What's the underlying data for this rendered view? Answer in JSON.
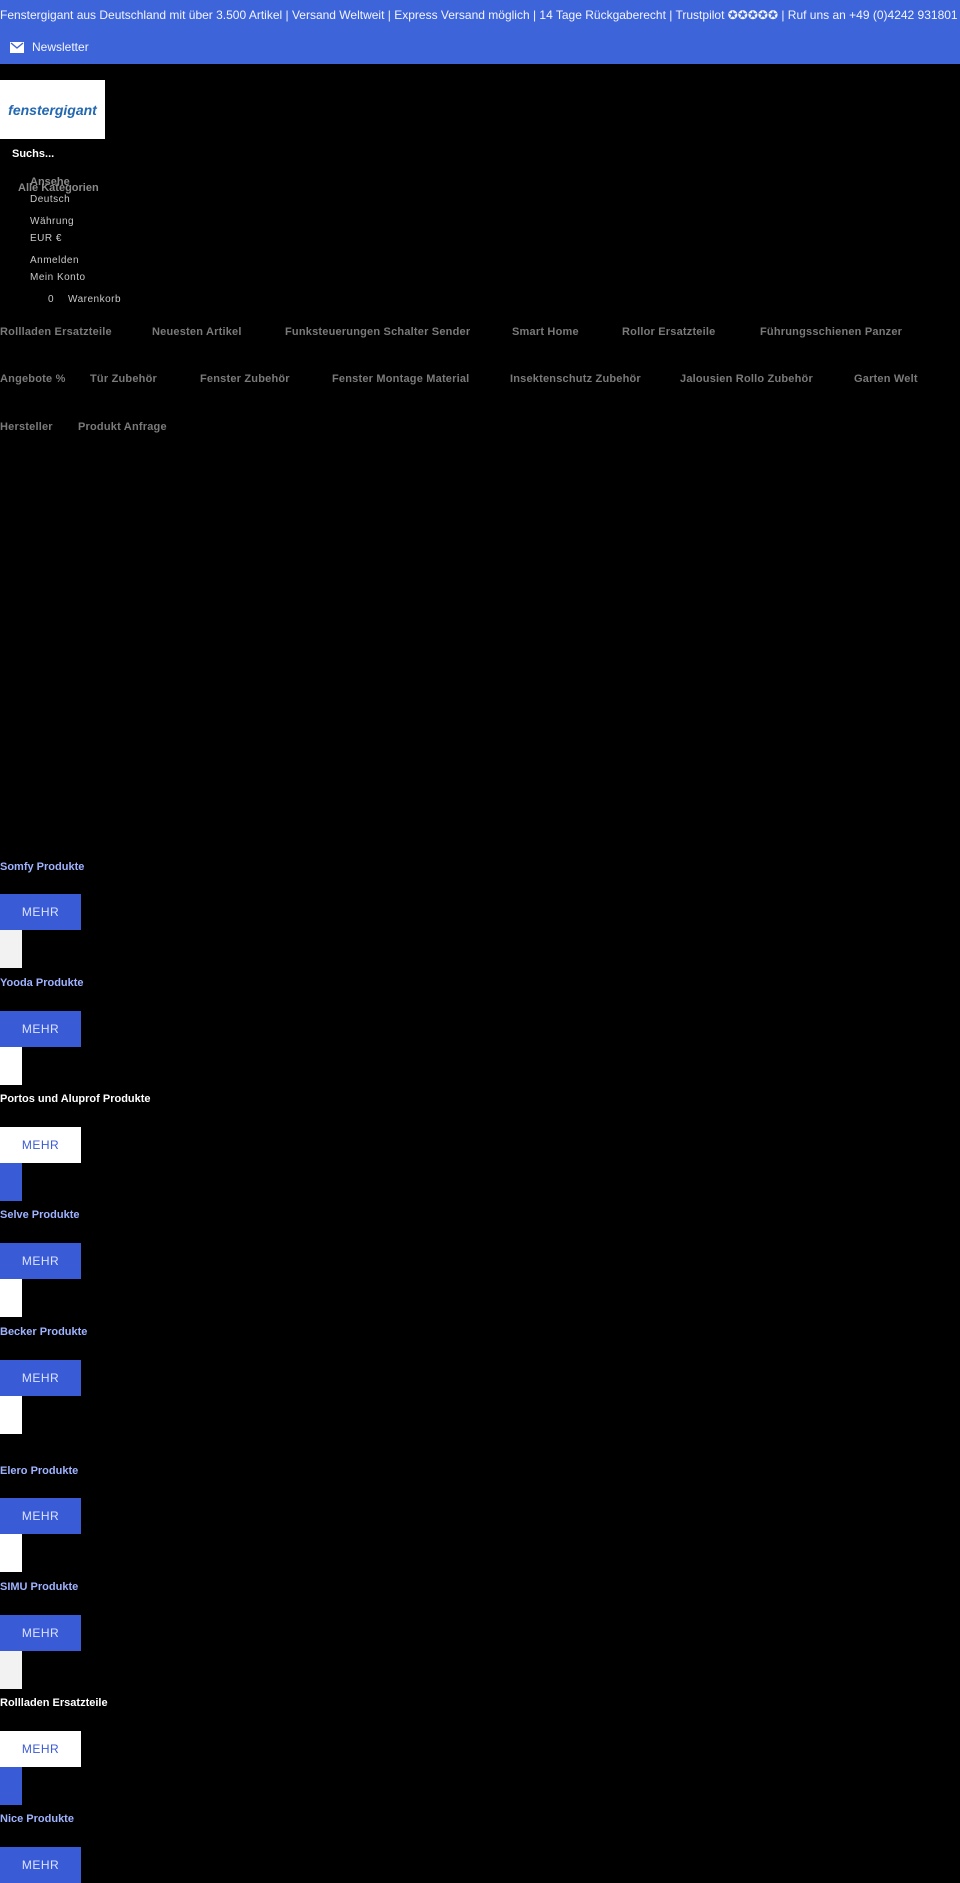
{
  "topbar": {
    "promo": "Fenstergigant aus Deutschland mit über 3.500 Artikel | Versand Weltweit | Express Versand möglich | 14 Tage Rückgaberecht | Trustpilot ✪✪✪✪✪ | Ruf uns an +49 (0)4242 931801",
    "newsletter": "Newsletter"
  },
  "logo": {
    "text": "fenstergigant"
  },
  "header": {
    "search_label": "Suchs...",
    "search_sub": "Ansehe",
    "all_categories": "Alle Kategorien",
    "deutsch": "Deutsch",
    "waehrung": "Währung",
    "eur": "EUR €",
    "anmelden": "Anmelden",
    "mein_konto": "Mein Konto",
    "cart_count": "0",
    "cart_label": "Warenkorb"
  },
  "nav": {
    "row1": [
      "Rollladen Ersatzteile",
      "Neuesten Artikel",
      "Funksteuerungen Schalter Sender",
      "Smart Home",
      "Rollor Ersatzteile",
      "Führungsschienen Panzer"
    ],
    "row2": [
      "Angebote %",
      "Tür Zubehör",
      "Fenster Zubehör",
      "Fenster Montage Material",
      "Insektenschutz Zubehör",
      "Jalousien Rollo Zubehör",
      "Garten Welt"
    ],
    "row3": [
      "Hersteller",
      "Produkt Anfrage"
    ]
  },
  "categories": [
    {
      "title": "Somfy Produkte",
      "button": "MEHR"
    },
    {
      "title": "Yooda Produkte",
      "button": "MEHR"
    },
    {
      "title": "Portos und Aluprof Produkte",
      "button": "MEHR"
    },
    {
      "title": "Selve Produkte",
      "button": "MEHR"
    },
    {
      "title": "Becker Produkte",
      "button": "MEHR"
    },
    {
      "title": "Elero Produkte",
      "button": "MEHR"
    },
    {
      "title": "SIMU Produkte",
      "button": "MEHR"
    },
    {
      "title": "Rollladen Ersatzteile",
      "button": "MEHR"
    },
    {
      "title": "Nice Produkte",
      "button": "MEHR"
    }
  ],
  "colors": {
    "topbar": "#3d64d8",
    "accent": "#3a5bd6",
    "title_blue": "#9fb3ff",
    "title_white": "#ffffff"
  }
}
